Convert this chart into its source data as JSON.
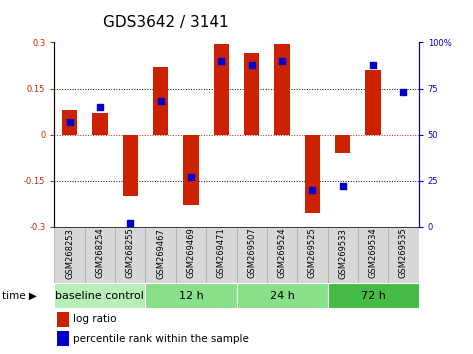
{
  "title": "GDS3642 / 3141",
  "samples": [
    "GSM268253",
    "GSM268254",
    "GSM268255",
    "GSM269467",
    "GSM269469",
    "GSM269471",
    "GSM269507",
    "GSM269524",
    "GSM269525",
    "GSM269533",
    "GSM269534",
    "GSM269535"
  ],
  "log_ratio": [
    0.08,
    0.07,
    -0.2,
    0.22,
    -0.23,
    0.295,
    0.265,
    0.295,
    -0.255,
    -0.06,
    0.21,
    0.0
  ],
  "percentile": [
    57,
    65,
    2,
    68,
    27,
    90,
    88,
    90,
    20,
    22,
    88,
    73
  ],
  "groups": [
    {
      "label": "baseline control",
      "start": 0,
      "end": 3,
      "color": "#b8eeb8"
    },
    {
      "label": "12 h",
      "start": 3,
      "end": 6,
      "color": "#88e088"
    },
    {
      "label": "24 h",
      "start": 6,
      "end": 9,
      "color": "#88e088"
    },
    {
      "label": "72 h",
      "start": 9,
      "end": 12,
      "color": "#44bb44"
    }
  ],
  "ylim": [
    -0.3,
    0.3
  ],
  "yticks_left": [
    -0.3,
    -0.15,
    0,
    0.15,
    0.3
  ],
  "yticks_right": [
    0,
    25,
    50,
    75,
    100
  ],
  "bar_color": "#cc2200",
  "dot_color": "#0000cc",
  "bg_color": "#ffffff",
  "title_fontsize": 11,
  "tick_fontsize": 6,
  "sample_fontsize": 6,
  "group_label_fontsize": 8,
  "legend_fontsize": 7.5
}
